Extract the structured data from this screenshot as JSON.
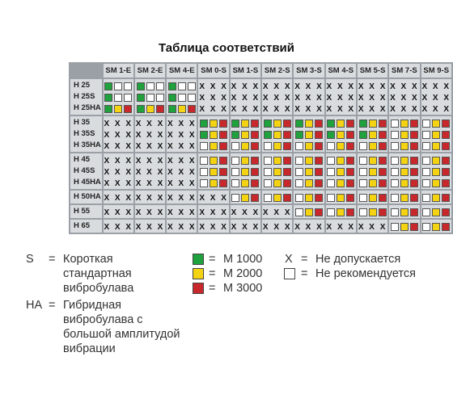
{
  "title": "Таблица соответствий",
  "columns": [
    "SM 1-E",
    "SM 2-E",
    "SM 4-E",
    "SM 0-S",
    "SM 1-S",
    "SM 2-S",
    "SM 3-S",
    "SM 4-S",
    "SM 5-S",
    "SM 7-S",
    "SM 9-S"
  ],
  "groups": [
    {
      "rows": [
        "H 25",
        "H 25S",
        "H 25HA"
      ],
      "cells": [
        [
          "gww|gww|gyr"
        ],
        [
          "gww|gww|gyr"
        ],
        [
          "gww|gww|gyr"
        ],
        [
          "X|X|X"
        ],
        [
          "X|X|X"
        ],
        [
          "X|X|X"
        ],
        [
          "X|X|X"
        ],
        [
          "X|X|X"
        ],
        [
          "X|X|X"
        ],
        [
          "X|X|X"
        ],
        [
          "X|X|X"
        ]
      ]
    },
    {
      "rows": [
        "H 35",
        "H 35S",
        "H 35HA"
      ],
      "cells": [
        [
          "X|X|X"
        ],
        [
          "X|X|X"
        ],
        [
          "X|X|X"
        ],
        [
          "gyr|gyr|wyr"
        ],
        [
          "gyr|gyr|wyr"
        ],
        [
          "gyr|gyr|wyr"
        ],
        [
          "gyr|gyr|wyr"
        ],
        [
          "gyr|gyr|wyr"
        ],
        [
          "gyr|gyr|wyr"
        ],
        [
          "wyr|wyr|wyr"
        ],
        [
          "wyr|wyr|wyr"
        ]
      ]
    },
    {
      "rows": [
        "H 45",
        "H 45S",
        "H 45HA"
      ],
      "cells": [
        [
          "X|X|X"
        ],
        [
          "X|X|X"
        ],
        [
          "X|X|X"
        ],
        [
          "wyr|wyr|wyr"
        ],
        [
          "wyr|wyr|wyr"
        ],
        [
          "wyr|wyr|wyr"
        ],
        [
          "wyr|wyr|wyr"
        ],
        [
          "wyr|wyr|wyr"
        ],
        [
          "wyr|wyr|wyr"
        ],
        [
          "wyr|wyr|wyr"
        ],
        [
          "wyr|wyr|wyr"
        ]
      ]
    },
    {
      "rows": [
        "H 50HA"
      ],
      "cells": [
        [
          "X"
        ],
        [
          "X"
        ],
        [
          "X"
        ],
        [
          "X"
        ],
        [
          "wyr"
        ],
        [
          "wyr"
        ],
        [
          "wyr"
        ],
        [
          "wyr"
        ],
        [
          "wyr"
        ],
        [
          "wyr"
        ],
        [
          "wyr"
        ]
      ]
    },
    {
      "rows": [
        "H 55"
      ],
      "cells": [
        [
          "X"
        ],
        [
          "X"
        ],
        [
          "X"
        ],
        [
          "X"
        ],
        [
          "X"
        ],
        [
          "X"
        ],
        [
          "wyr"
        ],
        [
          "wyr"
        ],
        [
          "wyr"
        ],
        [
          "wyr"
        ],
        [
          "wyr"
        ]
      ]
    },
    {
      "rows": [
        "H 65"
      ],
      "cells": [
        [
          "X"
        ],
        [
          "X"
        ],
        [
          "X"
        ],
        [
          "X"
        ],
        [
          "X"
        ],
        [
          "X"
        ],
        [
          "X"
        ],
        [
          "X"
        ],
        [
          "X"
        ],
        [
          "wyr"
        ],
        [
          "wyr"
        ]
      ]
    }
  ],
  "legend": {
    "s_key": "S",
    "s_eq": "=",
    "s_text": [
      "Короткая",
      "стандартная",
      "вибробулава"
    ],
    "ha_key": "HA",
    "ha_eq": "=",
    "ha_text": [
      "Гибридная",
      "вибробулава с",
      "большой амплитудой",
      "вибрации"
    ],
    "colors": [
      {
        "color": "#1fa13d",
        "eq": "=",
        "label": "M 1000"
      },
      {
        "color": "#f4d412",
        "eq": "=",
        "label": "M 2000"
      },
      {
        "color": "#c8282c",
        "eq": "=",
        "label": "M 3000"
      }
    ],
    "x_key": "X",
    "x_eq": "=",
    "x_text": "Не допускается",
    "white_eq": "=",
    "white_text": "Не рекомендуется"
  },
  "x_symbol": "X X X"
}
